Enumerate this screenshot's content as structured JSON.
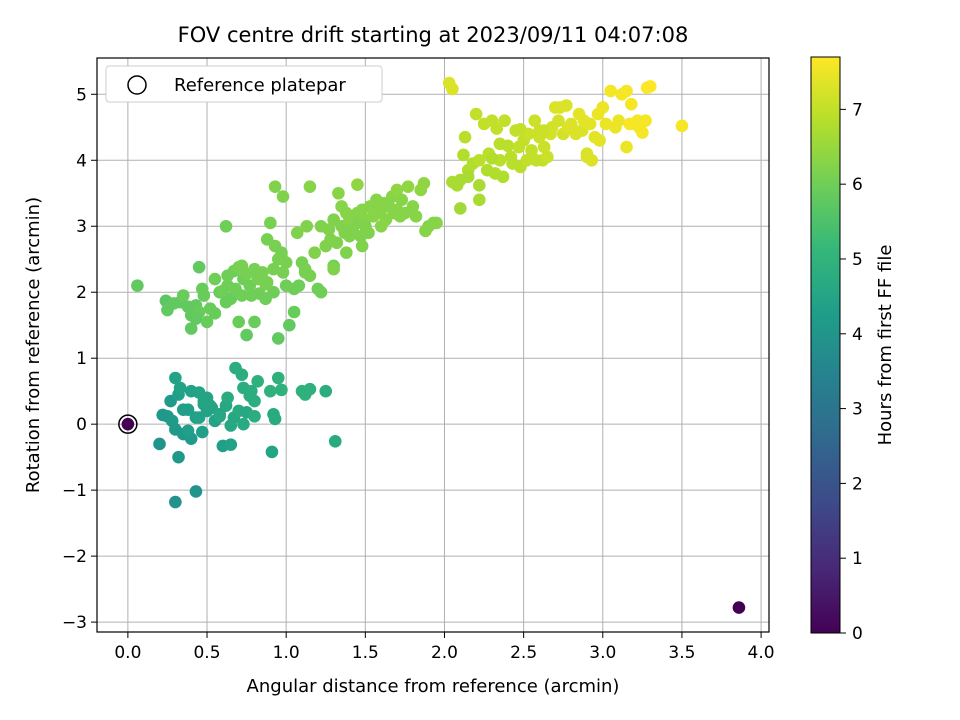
{
  "chart_data": {
    "type": "scatter",
    "title": "FOV centre drift starting at 2023/09/11 04:07:08",
    "xlabel": "Angular distance from reference (arcmin)",
    "ylabel": "Rotation from reference (arcmin)",
    "xlim": [
      -0.195,
      4.05
    ],
    "ylim": [
      -3.15,
      5.55
    ],
    "xticks": [
      "0.0",
      "0.5",
      "1.0",
      "1.5",
      "2.0",
      "2.5",
      "3.0",
      "3.5",
      "4.0"
    ],
    "yticks": [
      "−3",
      "−2",
      "−1",
      "0",
      "1",
      "2",
      "3",
      "4",
      "5"
    ],
    "grid": true,
    "legend": {
      "position": "top-left",
      "label": "Reference platepar"
    },
    "reference_point": {
      "x": 0.0,
      "y": 0.0
    },
    "colorbar": {
      "label": "Hours from first FF file",
      "range": [
        0,
        7.7
      ],
      "ticks": [
        "0",
        "1",
        "2",
        "3",
        "4",
        "5",
        "6",
        "7"
      ],
      "colormap": [
        "#440154",
        "#482878",
        "#3e4989",
        "#31688e",
        "#26828e",
        "#1f9e89",
        "#35b779",
        "#6ece58",
        "#b5de2b",
        "#fde725"
      ]
    },
    "series": [
      {
        "x": [
          0.0,
          3.86
        ],
        "y": [
          0.0,
          -2.78
        ],
        "t": [
          0.0,
          0.0
        ]
      },
      {
        "x": [
          0.2,
          0.22,
          0.25,
          0.27,
          0.3,
          0.3,
          0.32,
          0.33,
          0.35,
          0.38,
          0.4,
          0.4,
          0.43,
          0.45,
          0.47,
          0.48,
          0.5,
          0.5,
          0.53,
          0.55,
          0.58,
          0.6,
          0.62,
          0.63,
          0.65,
          0.67,
          0.68,
          0.7,
          0.72,
          0.73,
          0.75,
          0.77,
          0.78,
          0.8,
          0.82,
          0.9,
          0.92,
          0.93,
          0.95,
          0.97,
          1.1,
          1.12,
          1.15,
          1.25,
          1.31,
          0.3,
          0.43,
          0.91,
          0.35,
          0.32,
          0.45,
          0.65,
          0.73,
          0.8,
          0.48,
          0.58,
          0.38,
          0.28,
          0.52
        ],
        "y": [
          -0.3,
          0.14,
          0.12,
          0.35,
          -0.08,
          0.7,
          0.45,
          0.55,
          -0.15,
          0.22,
          0.5,
          -0.22,
          0.1,
          0.48,
          -0.12,
          0.3,
          0.2,
          0.4,
          0.25,
          0.05,
          0.15,
          -0.33,
          0.28,
          0.4,
          -0.31,
          0.1,
          0.85,
          0.2,
          0.75,
          0.55,
          0.18,
          0.43,
          0.5,
          0.35,
          0.65,
          0.5,
          0.15,
          0.08,
          0.7,
          0.52,
          0.5,
          0.45,
          0.53,
          0.5,
          -0.26,
          -1.18,
          -1.02,
          -0.42,
          0.22,
          -0.5,
          0.1,
          -0.02,
          0.0,
          0.12,
          0.35,
          0.12,
          -0.1,
          0.05,
          0.28
        ],
        "t": [
          4.0,
          4.1,
          4.1,
          4.2,
          4.1,
          4.4,
          4.3,
          4.4,
          4.1,
          4.3,
          4.4,
          4.2,
          4.3,
          4.5,
          4.3,
          4.5,
          4.4,
          4.5,
          4.5,
          4.4,
          4.5,
          4.3,
          4.6,
          4.7,
          4.4,
          4.6,
          4.8,
          4.7,
          4.8,
          4.8,
          4.6,
          4.8,
          4.8,
          4.8,
          4.9,
          4.9,
          4.7,
          4.7,
          4.9,
          4.9,
          4.9,
          4.9,
          4.9,
          4.8,
          4.7,
          3.9,
          4.0,
          4.5,
          4.3,
          4.1,
          4.4,
          4.6,
          4.7,
          4.8,
          4.5,
          4.6,
          4.3,
          4.2,
          4.5
        ]
      },
      {
        "x": [
          0.06,
          0.24,
          0.25,
          0.29,
          0.33,
          0.38,
          0.4,
          0.4,
          0.43,
          0.45,
          0.45,
          0.47,
          0.48,
          0.5,
          0.52,
          0.55,
          0.58,
          0.6,
          0.62,
          0.63,
          0.63,
          0.65,
          0.67,
          0.68,
          0.7,
          0.7,
          0.72,
          0.73,
          0.75,
          0.75,
          0.77,
          0.78,
          0.8,
          0.8,
          0.82,
          0.83,
          0.85,
          0.87,
          0.87,
          0.88,
          0.9,
          0.92,
          0.92,
          0.93,
          0.95,
          0.95,
          0.97,
          0.98,
          1.0,
          1.0,
          1.02,
          1.05,
          1.07,
          1.08,
          1.1,
          1.12,
          1.13,
          1.15,
          1.18,
          1.2,
          1.22,
          1.25,
          1.27,
          1.28,
          1.3,
          1.3,
          1.32,
          1.33,
          1.35,
          1.37,
          1.38,
          1.4,
          1.4,
          1.42,
          1.43,
          1.45,
          1.45,
          1.47,
          1.48,
          1.5,
          1.5,
          1.52,
          1.53,
          1.55,
          1.57,
          1.58,
          1.6,
          1.62,
          1.63,
          1.65,
          1.67,
          1.68,
          1.7,
          1.72,
          1.73,
          1.75,
          1.77,
          1.8,
          1.82,
          1.85,
          1.87,
          1.9,
          1.93,
          1.95,
          0.62,
          0.93,
          0.97,
          1.15,
          1.45,
          1.7,
          1.88,
          1.38,
          1.12,
          1.3,
          1.05,
          0.98,
          0.88,
          0.72,
          0.55,
          0.43,
          0.35,
          1.22,
          1.48,
          1.6,
          1.35
        ],
        "y": [
          2.1,
          1.87,
          1.73,
          1.83,
          1.85,
          1.78,
          1.45,
          1.65,
          1.8,
          2.38,
          1.7,
          2.05,
          1.95,
          1.55,
          1.75,
          1.68,
          2.0,
          2.02,
          1.85,
          2.1,
          2.25,
          1.9,
          2.32,
          2.05,
          1.55,
          2.38,
          1.95,
          2.2,
          1.35,
          2.28,
          2.1,
          1.95,
          2.35,
          1.55,
          2.2,
          1.98,
          2.3,
          1.9,
          2.12,
          2.15,
          3.05,
          2.0,
          2.35,
          3.6,
          2.5,
          1.3,
          2.55,
          3.45,
          2.45,
          2.1,
          1.5,
          2.05,
          2.9,
          2.1,
          2.45,
          2.35,
          3.0,
          2.25,
          2.6,
          2.05,
          3.0,
          2.7,
          2.95,
          2.8,
          3.1,
          2.4,
          2.75,
          3.5,
          3.0,
          2.9,
          3.2,
          2.85,
          3.1,
          2.95,
          3.15,
          3.2,
          3.05,
          2.85,
          3.25,
          3.1,
          3.0,
          2.9,
          3.3,
          3.15,
          3.4,
          3.2,
          3.25,
          3.35,
          3.1,
          3.3,
          3.45,
          3.2,
          3.55,
          3.15,
          3.4,
          3.2,
          3.6,
          3.3,
          3.15,
          3.55,
          3.65,
          3.0,
          3.05,
          3.05,
          3.0,
          2.7,
          2.6,
          3.6,
          3.63,
          3.25,
          2.93,
          2.6,
          2.3,
          2.35,
          1.7,
          2.3,
          2.8,
          2.4,
          2.2,
          1.6,
          1.95,
          2.0,
          2.7,
          3.0,
          3.3
        ],
        "t": [
          5.8,
          5.7,
          5.8,
          5.8,
          5.8,
          5.8,
          5.8,
          5.8,
          5.8,
          5.8,
          5.9,
          5.9,
          5.9,
          5.9,
          5.9,
          5.9,
          5.9,
          6.0,
          5.9,
          6.0,
          6.0,
          5.9,
          6.0,
          6.0,
          5.9,
          6.1,
          6.0,
          6.0,
          5.8,
          6.1,
          6.0,
          6.0,
          6.1,
          5.9,
          6.1,
          6.0,
          6.1,
          6.0,
          6.1,
          6.1,
          6.1,
          6.0,
          6.1,
          6.2,
          6.1,
          5.8,
          6.1,
          6.2,
          6.1,
          6.0,
          5.8,
          6.0,
          6.2,
          6.0,
          6.1,
          6.1,
          6.2,
          6.1,
          6.2,
          6.0,
          6.2,
          6.2,
          6.2,
          6.2,
          6.2,
          6.1,
          6.2,
          6.3,
          6.2,
          6.2,
          6.3,
          6.2,
          6.3,
          6.2,
          6.3,
          6.3,
          6.2,
          6.2,
          6.3,
          6.3,
          6.2,
          6.2,
          6.3,
          6.3,
          6.3,
          6.3,
          6.3,
          6.3,
          6.3,
          6.3,
          6.3,
          6.3,
          6.4,
          6.3,
          6.3,
          6.3,
          6.4,
          6.3,
          6.3,
          6.4,
          6.4,
          6.2,
          6.3,
          6.3,
          6.0,
          6.1,
          6.1,
          6.3,
          6.4,
          6.3,
          6.3,
          6.2,
          6.1,
          6.2,
          5.9,
          6.1,
          6.1,
          6.1,
          6.0,
          5.8,
          5.9,
          6.0,
          6.2,
          6.3,
          6.3
        ]
      },
      {
        "x": [
          2.03,
          2.05,
          2.08,
          2.1,
          2.12,
          2.13,
          2.15,
          2.18,
          2.2,
          2.22,
          2.22,
          2.25,
          2.27,
          2.28,
          2.3,
          2.32,
          2.33,
          2.35,
          2.37,
          2.38,
          2.4,
          2.42,
          2.43,
          2.45,
          2.47,
          2.48,
          2.5,
          2.52,
          2.53,
          2.55,
          2.57,
          2.58,
          2.6,
          2.6,
          2.62,
          2.63,
          2.65,
          2.67,
          2.68,
          2.7,
          2.72,
          2.73,
          2.75,
          2.77,
          2.78,
          2.8,
          2.82,
          2.83,
          2.85,
          2.87,
          2.88,
          2.9,
          2.92,
          2.93,
          2.95,
          2.97,
          2.98,
          3.0,
          3.02,
          3.05,
          3.08,
          3.1,
          3.12,
          3.15,
          3.17,
          3.18,
          3.2,
          3.22,
          3.23,
          3.25,
          3.27,
          3.28,
          3.3,
          3.5,
          2.15,
          2.22,
          2.35,
          2.48,
          2.63,
          2.9,
          3.15,
          2.1,
          2.05,
          2.3
        ],
        "y": [
          5.17,
          5.08,
          3.62,
          3.27,
          4.08,
          4.35,
          3.85,
          3.95,
          4.7,
          3.62,
          4.0,
          4.55,
          3.85,
          4.1,
          4.6,
          3.8,
          4.48,
          4.0,
          3.75,
          4.6,
          4.22,
          4.05,
          3.95,
          4.45,
          4.2,
          3.9,
          4.3,
          4.0,
          4.4,
          4.15,
          4.6,
          4.0,
          4.35,
          4.45,
          4.0,
          4.2,
          4.05,
          4.4,
          4.5,
          4.8,
          4.6,
          4.8,
          4.4,
          4.83,
          4.5,
          4.55,
          4.45,
          4.4,
          4.7,
          4.45,
          4.6,
          4.1,
          4.55,
          4.0,
          4.35,
          4.7,
          4.3,
          4.8,
          4.55,
          5.05,
          4.5,
          4.6,
          5.0,
          4.2,
          4.55,
          4.85,
          4.55,
          4.6,
          4.5,
          4.42,
          4.6,
          5.1,
          5.12,
          4.52,
          3.75,
          3.4,
          4.25,
          4.47,
          4.45,
          4.05,
          5.05,
          3.7,
          3.67,
          4.03
        ],
        "t": [
          7.3,
          7.3,
          6.7,
          6.6,
          6.8,
          6.9,
          6.8,
          6.8,
          7.0,
          6.7,
          6.9,
          7.0,
          6.8,
          6.9,
          7.0,
          6.8,
          7.0,
          6.9,
          6.8,
          7.0,
          6.9,
          6.9,
          6.9,
          7.0,
          7.0,
          6.9,
          7.0,
          7.0,
          7.1,
          7.0,
          7.1,
          7.0,
          7.1,
          7.1,
          7.0,
          7.1,
          7.1,
          7.2,
          7.2,
          7.3,
          7.2,
          7.3,
          7.2,
          7.3,
          7.3,
          7.3,
          7.3,
          7.3,
          7.4,
          7.3,
          7.4,
          7.3,
          7.4,
          7.3,
          7.4,
          7.5,
          7.4,
          7.5,
          7.5,
          7.6,
          7.5,
          7.5,
          7.6,
          7.5,
          7.6,
          7.6,
          7.6,
          7.6,
          7.6,
          7.6,
          7.6,
          7.7,
          7.7,
          7.6,
          6.7,
          6.7,
          6.9,
          7.0,
          7.1,
          7.3,
          7.6,
          6.7,
          6.7,
          6.8
        ]
      }
    ]
  }
}
